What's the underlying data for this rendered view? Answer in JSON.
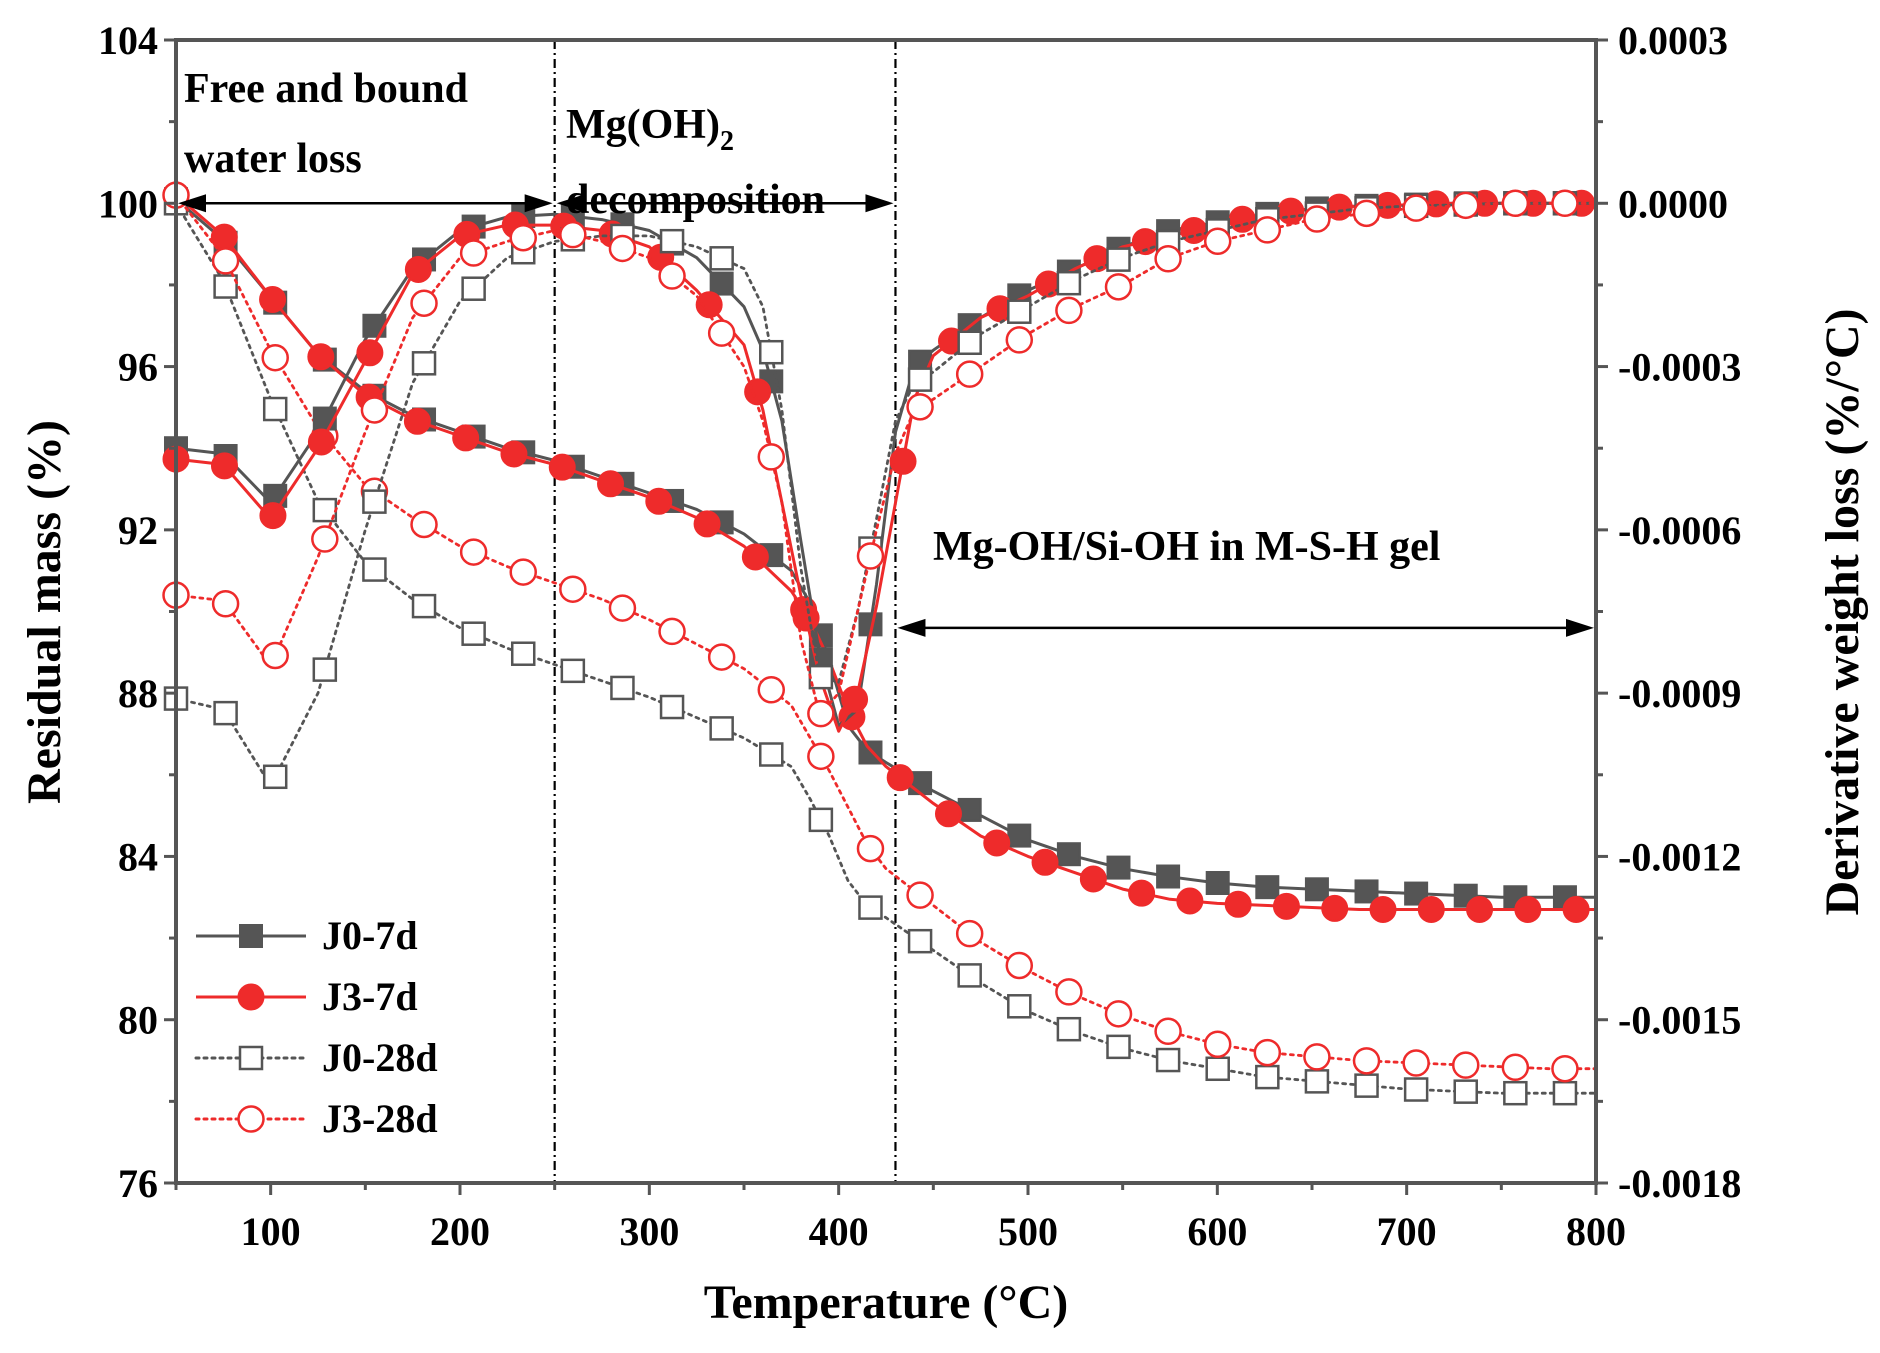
{
  "chart_data": {
    "type": "line",
    "xlabel": "Temperature (°C)",
    "ylabel_left": "Residual mass (%)",
    "ylabel_right": "Derivative weight loss (%/°C)",
    "xlim": [
      50,
      800
    ],
    "ylim_left": [
      76,
      104
    ],
    "ylim_right": [
      -0.0018,
      0.0003
    ],
    "x_ticks": [
      "100",
      "200",
      "300",
      "400",
      "500",
      "600",
      "700",
      "800"
    ],
    "x_tick_values": [
      100,
      200,
      300,
      400,
      500,
      600,
      700,
      800
    ],
    "y_left_ticks": [
      "76",
      "80",
      "84",
      "88",
      "92",
      "96",
      "100",
      "104"
    ],
    "y_left_tick_values": [
      76,
      80,
      84,
      88,
      92,
      96,
      100,
      104
    ],
    "y_right_ticks": [
      "-0.0018",
      "-0.0015",
      "-0.0012",
      "-0.0009",
      "-0.0006",
      "-0.0003",
      "0.0000",
      "0.0003"
    ],
    "y_right_tick_values": [
      -0.0018,
      -0.0015,
      -0.0012,
      -0.0009,
      -0.0006,
      -0.0003,
      0.0,
      0.0003
    ],
    "boundaries": [
      250,
      430
    ],
    "annotations": [
      {
        "id": "water",
        "text": "Free and bound",
        "text2": "water loss",
        "arrow_x": [
          50,
          250
        ],
        "arrow_y": 100
      },
      {
        "id": "mgoh",
        "text_main": "Mg(OH)",
        "text_sub": "2",
        "text2": "decomposition",
        "arrow_x": [
          250,
          430
        ],
        "arrow_y": 100
      },
      {
        "id": "msh",
        "text": "Mg-OH/Si-OH in M-S-H gel",
        "arrow_x": [
          430,
          800
        ],
        "arrow_y": 89.6
      }
    ],
    "legend": [
      {
        "label": "J0-7d",
        "color": "#555555",
        "marker": "square-filled",
        "dash": "solid"
      },
      {
        "label": "J3-7d",
        "color": "#ee2b2b",
        "marker": "circle-filled",
        "dash": "solid"
      },
      {
        "label": "J0-28d",
        "color": "#555555",
        "marker": "square-open",
        "dash": "dotted"
      },
      {
        "label": "J3-28d",
        "color": "#ee2b2b",
        "marker": "circle-open",
        "dash": "dotted"
      }
    ],
    "series": [
      {
        "name": "J0-7d TG",
        "legend_index": 0,
        "axis": "left",
        "marker_start": 50,
        "marker_step": 26.2,
        "x": [
          50,
          75,
          100,
          125,
          150,
          175,
          200,
          225,
          250,
          275,
          300,
          325,
          350,
          375,
          385,
          395,
          405,
          415,
          425,
          450,
          475,
          500,
          525,
          550,
          575,
          600,
          625,
          650,
          675,
          700,
          725,
          750,
          775,
          800
        ],
        "y": [
          100.1,
          99.1,
          97.7,
          96.3,
          95.4,
          94.8,
          94.4,
          94.0,
          93.7,
          93.3,
          92.9,
          92.5,
          91.9,
          91.0,
          90.2,
          88.8,
          87.2,
          86.6,
          86.3,
          85.6,
          85.0,
          84.4,
          84.0,
          83.7,
          83.5,
          83.35,
          83.25,
          83.2,
          83.15,
          83.1,
          83.05,
          83.0,
          83.0,
          83.0
        ]
      },
      {
        "name": "J3-7d TG",
        "legend_index": 1,
        "axis": "left",
        "marker_start": 50,
        "marker_step": 25.5,
        "x": [
          50,
          75,
          100,
          125,
          150,
          175,
          200,
          225,
          250,
          275,
          300,
          325,
          350,
          375,
          385,
          395,
          405,
          415,
          425,
          450,
          475,
          500,
          525,
          550,
          575,
          600,
          625,
          650,
          675,
          700,
          725,
          750,
          775,
          800
        ],
        "y": [
          100.2,
          99.2,
          97.7,
          96.3,
          95.3,
          94.7,
          94.3,
          93.9,
          93.6,
          93.2,
          92.8,
          92.3,
          91.6,
          90.5,
          89.8,
          88.8,
          87.6,
          86.7,
          86.2,
          85.3,
          84.5,
          84.0,
          83.6,
          83.2,
          82.95,
          82.85,
          82.8,
          82.75,
          82.7,
          82.7,
          82.7,
          82.7,
          82.7,
          82.7
        ]
      },
      {
        "name": "J0-28d TG",
        "legend_index": 2,
        "axis": "left",
        "marker_start": 50,
        "marker_step": 26.2,
        "x": [
          50,
          75,
          100,
          125,
          150,
          175,
          200,
          225,
          250,
          275,
          300,
          325,
          350,
          375,
          385,
          395,
          405,
          415,
          425,
          450,
          475,
          500,
          525,
          550,
          575,
          600,
          625,
          650,
          675,
          700,
          725,
          750,
          775,
          800
        ],
        "y": [
          100.0,
          98.1,
          95.2,
          92.7,
          91.2,
          90.3,
          89.6,
          89.1,
          88.7,
          88.3,
          87.9,
          87.4,
          86.9,
          86.2,
          85.4,
          84.5,
          83.4,
          82.8,
          82.5,
          81.7,
          80.9,
          80.2,
          79.7,
          79.3,
          79.0,
          78.8,
          78.6,
          78.5,
          78.4,
          78.3,
          78.25,
          78.2,
          78.2,
          78.2
        ]
      },
      {
        "name": "J3-28d TG",
        "legend_index": 3,
        "axis": "left",
        "marker_start": 50,
        "marker_step": 26.2,
        "x": [
          50,
          75,
          100,
          125,
          150,
          175,
          200,
          225,
          250,
          275,
          300,
          325,
          350,
          375,
          385,
          395,
          405,
          415,
          425,
          450,
          475,
          500,
          525,
          550,
          575,
          600,
          625,
          650,
          675,
          700,
          725,
          750,
          775,
          800
        ],
        "y": [
          100.2,
          98.7,
          96.4,
          94.5,
          93.1,
          92.3,
          91.6,
          91.1,
          90.7,
          90.3,
          89.8,
          89.2,
          88.6,
          87.7,
          86.9,
          86.1,
          85.2,
          84.3,
          83.7,
          82.8,
          81.9,
          81.2,
          80.6,
          80.1,
          79.7,
          79.4,
          79.2,
          79.1,
          79.0,
          78.95,
          78.9,
          78.85,
          78.8,
          78.8
        ]
      },
      {
        "name": "J0-7d DTG",
        "legend_index": 0,
        "axis": "right",
        "marker_start": 50,
        "marker_step": 26.2,
        "x": [
          50,
          75,
          100,
          125,
          150,
          175,
          200,
          225,
          250,
          275,
          300,
          325,
          350,
          360,
          370,
          380,
          390,
          400,
          410,
          420,
          430,
          440,
          450,
          475,
          500,
          525,
          550,
          575,
          600,
          625,
          650,
          675,
          700,
          725,
          750,
          775,
          800
        ],
        "y": [
          -0.00045,
          -0.00046,
          -0.00055,
          -0.00042,
          -0.00025,
          -0.00012,
          -5e-05,
          -2.5e-05,
          -2e-05,
          -3e-05,
          -5e-05,
          -0.0001,
          -0.00019,
          -0.00027,
          -0.0004,
          -0.00062,
          -0.00083,
          -0.00096,
          -0.00093,
          -0.0007,
          -0.00042,
          -0.0003,
          -0.00027,
          -0.00021,
          -0.00016,
          -0.00012,
          -8e-05,
          -5e-05,
          -3.5e-05,
          -2e-05,
          -1e-05,
          -5e-06,
          -3e-06,
          0.0,
          0.0,
          0.0,
          0.0
        ]
      },
      {
        "name": "J3-7d DTG",
        "legend_index": 1,
        "axis": "right",
        "marker_start": 50,
        "marker_step": 25.6,
        "x": [
          50,
          75,
          100,
          125,
          150,
          175,
          200,
          225,
          250,
          275,
          300,
          325,
          350,
          360,
          370,
          380,
          390,
          400,
          410,
          420,
          430,
          440,
          450,
          475,
          500,
          525,
          550,
          575,
          600,
          625,
          650,
          675,
          700,
          725,
          750,
          775,
          800
        ],
        "y": [
          -0.00047,
          -0.00048,
          -0.00058,
          -0.00045,
          -0.00029,
          -0.00013,
          -6e-05,
          -4e-05,
          -4e-05,
          -5e-05,
          -8e-05,
          -0.00016,
          -0.00026,
          -0.00038,
          -0.00055,
          -0.00072,
          -0.00087,
          -0.00097,
          -0.0009,
          -0.00074,
          -0.00055,
          -0.00036,
          -0.00028,
          -0.00021,
          -0.00017,
          -0.00012,
          -8e-05,
          -6e-05,
          -4e-05,
          -2e-05,
          -1e-05,
          -5e-06,
          -3e-06,
          0.0,
          0.0,
          0.0,
          0.0
        ]
      },
      {
        "name": "J0-28d DTG",
        "legend_index": 2,
        "axis": "right",
        "marker_start": 50,
        "marker_step": 26.2,
        "x": [
          50,
          75,
          100,
          125,
          150,
          175,
          200,
          225,
          250,
          275,
          300,
          325,
          350,
          360,
          370,
          380,
          390,
          400,
          410,
          420,
          430,
          440,
          450,
          475,
          500,
          525,
          550,
          575,
          600,
          625,
          650,
          675,
          700,
          725,
          750,
          775,
          800
        ],
        "y": [
          -0.00091,
          -0.00093,
          -0.00107,
          -0.0009,
          -0.0006,
          -0.00033,
          -0.00018,
          -0.0001,
          -7e-05,
          -6e-05,
          -6e-05,
          -8e-05,
          -0.00012,
          -0.00019,
          -0.00038,
          -0.00067,
          -0.00087,
          -0.00088,
          -0.00075,
          -0.00058,
          -0.0004,
          -0.00033,
          -0.00031,
          -0.00024,
          -0.00019,
          -0.00014,
          -0.0001,
          -7e-05,
          -5e-05,
          -3e-05,
          -2e-05,
          -1e-05,
          -5e-06,
          -3e-06,
          0.0,
          0.0,
          0.0
        ]
      },
      {
        "name": "J3-28d DTG",
        "legend_index": 3,
        "axis": "right",
        "marker_start": 50,
        "marker_step": 26.2,
        "x": [
          50,
          75,
          100,
          125,
          150,
          175,
          200,
          225,
          250,
          275,
          300,
          325,
          350,
          360,
          370,
          380,
          390,
          400,
          410,
          420,
          430,
          440,
          450,
          475,
          500,
          525,
          550,
          575,
          600,
          625,
          650,
          675,
          700,
          725,
          750,
          775,
          800
        ],
        "y": [
          -0.00072,
          -0.00073,
          -0.00085,
          -0.00065,
          -0.00042,
          -0.00021,
          -0.0001,
          -7e-05,
          -5e-05,
          -7e-05,
          -0.0001,
          -0.00017,
          -0.0003,
          -0.0004,
          -0.00055,
          -0.0008,
          -0.00094,
          -0.0009,
          -0.00075,
          -0.0006,
          -0.00046,
          -0.00038,
          -0.00036,
          -0.0003,
          -0.00024,
          -0.00019,
          -0.00015,
          -0.0001,
          -7e-05,
          -5e-05,
          -3e-05,
          -2e-05,
          -1e-05,
          -5e-06,
          0.0,
          0.0,
          0.0
        ]
      }
    ]
  }
}
